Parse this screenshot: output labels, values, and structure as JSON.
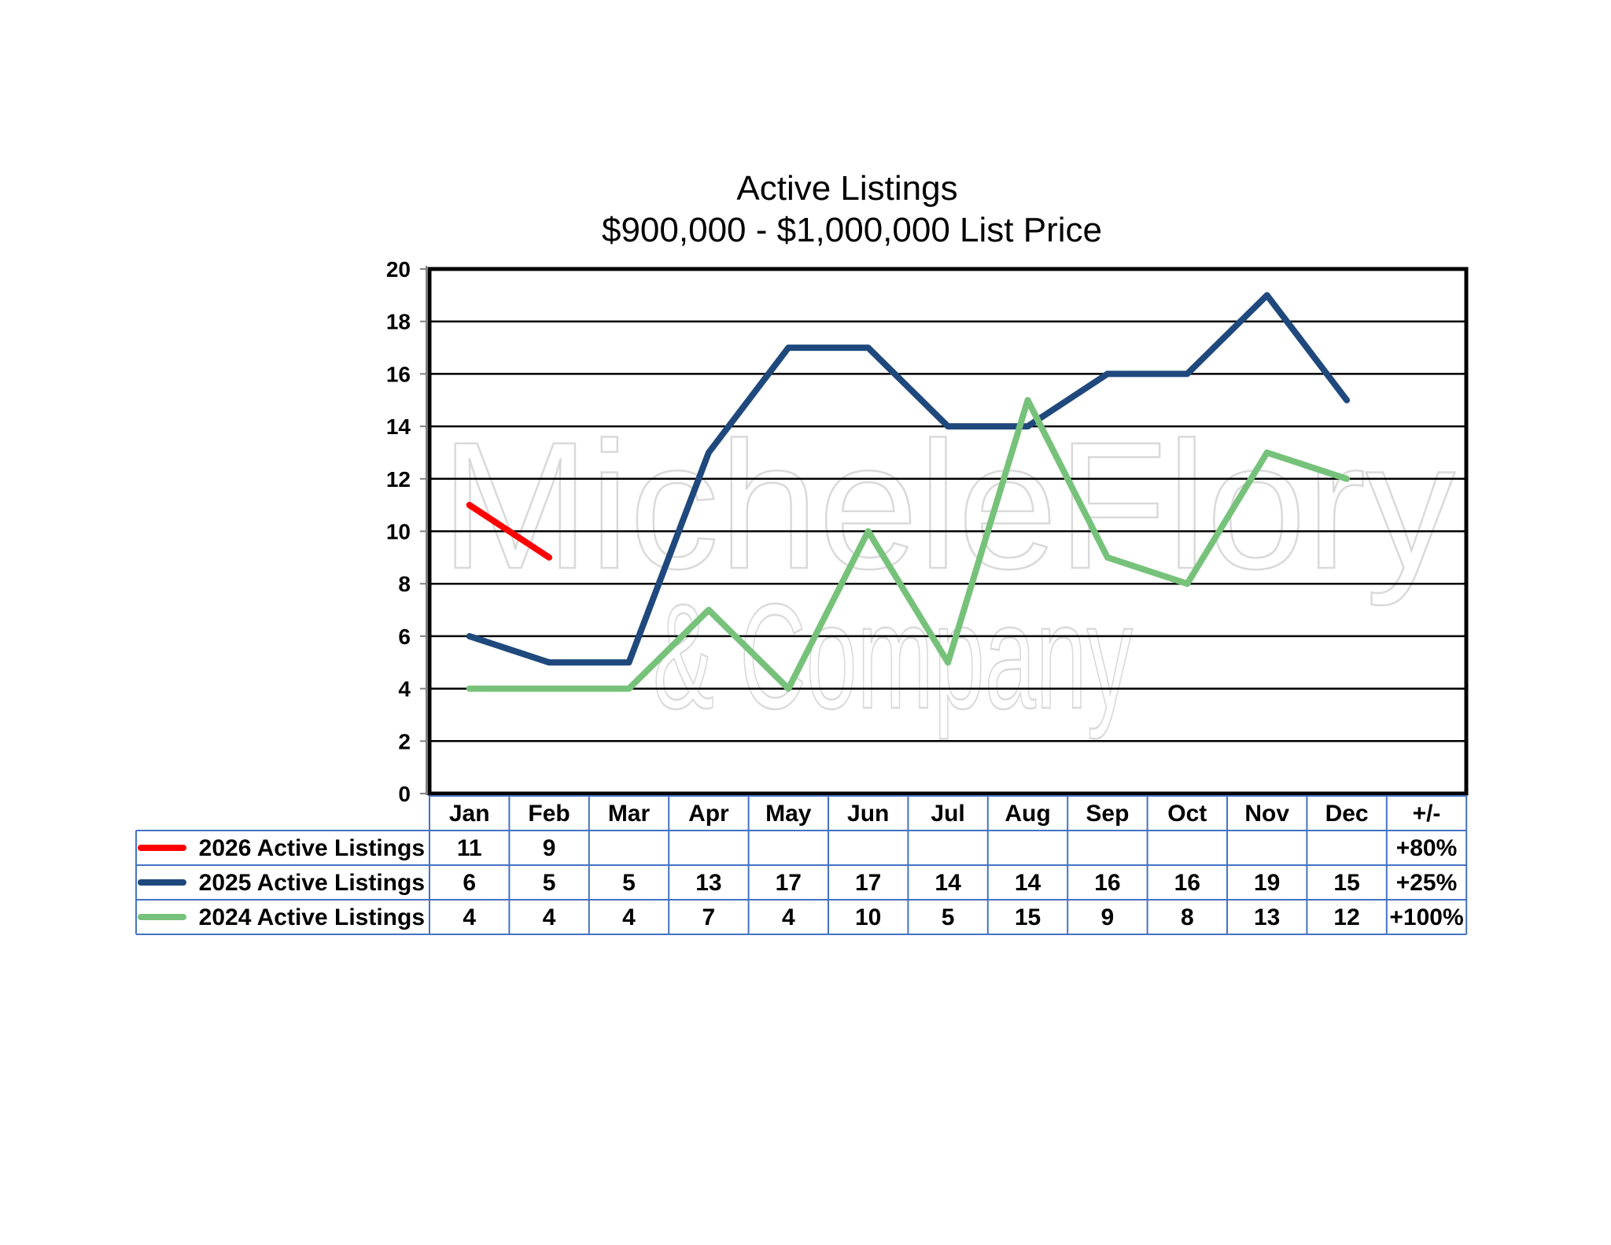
{
  "chart_data": {
    "type": "line",
    "title": "Active Listings",
    "subtitle": "$900,000 - $1,000,000 List Price",
    "categories": [
      "Jan",
      "Feb",
      "Mar",
      "Apr",
      "May",
      "Jun",
      "Jul",
      "Aug",
      "Sep",
      "Oct",
      "Nov",
      "Dec"
    ],
    "change_header": "+/-",
    "ylim": [
      0,
      20
    ],
    "yticks": [
      0,
      2,
      4,
      6,
      8,
      10,
      12,
      14,
      16,
      18,
      20
    ],
    "grid": true,
    "legend_position": "data-table-left",
    "series": [
      {
        "name": "2026 Active Listings",
        "color": "#ff0000",
        "values": [
          11,
          9,
          null,
          null,
          null,
          null,
          null,
          null,
          null,
          null,
          null,
          null
        ],
        "change": "+80%"
      },
      {
        "name": "2025 Active Listings",
        "color": "#1f497d",
        "values": [
          6,
          5,
          5,
          13,
          17,
          17,
          14,
          14,
          16,
          16,
          19,
          15
        ],
        "change": "+25%"
      },
      {
        "name": "2024 Active Listings",
        "color": "#77c27a",
        "values": [
          4,
          4,
          4,
          7,
          4,
          10,
          5,
          15,
          9,
          8,
          13,
          12
        ],
        "change": "+100%"
      }
    ]
  },
  "watermark": {
    "line1": "MicheleFlory",
    "line2": "& Company"
  }
}
